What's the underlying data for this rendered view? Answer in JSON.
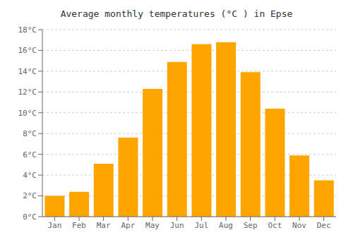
{
  "chart_data": {
    "type": "bar",
    "title": "Average monthly temperatures (°C ) in Epse",
    "categories": [
      "Jan",
      "Feb",
      "Mar",
      "Apr",
      "May",
      "Jun",
      "Jul",
      "Aug",
      "Sep",
      "Oct",
      "Nov",
      "Dec"
    ],
    "values": [
      2.0,
      2.4,
      5.1,
      7.6,
      12.3,
      14.9,
      16.6,
      16.8,
      13.9,
      10.4,
      5.9,
      3.5
    ],
    "color": "#FFA500",
    "ylim": [
      0,
      18
    ],
    "yticks": [
      {
        "value": 0,
        "label": "0°C"
      },
      {
        "value": 2,
        "label": "2°C"
      },
      {
        "value": 4,
        "label": "4°C"
      },
      {
        "value": 6,
        "label": "6°C"
      },
      {
        "value": 8,
        "label": "8°C"
      },
      {
        "value": 10,
        "label": "10°C"
      },
      {
        "value": 12,
        "label": "12°C"
      },
      {
        "value": 14,
        "label": "14°C"
      },
      {
        "value": 16,
        "label": "16°C"
      },
      {
        "value": 18,
        "label": "18°C"
      }
    ],
    "grid": true
  }
}
